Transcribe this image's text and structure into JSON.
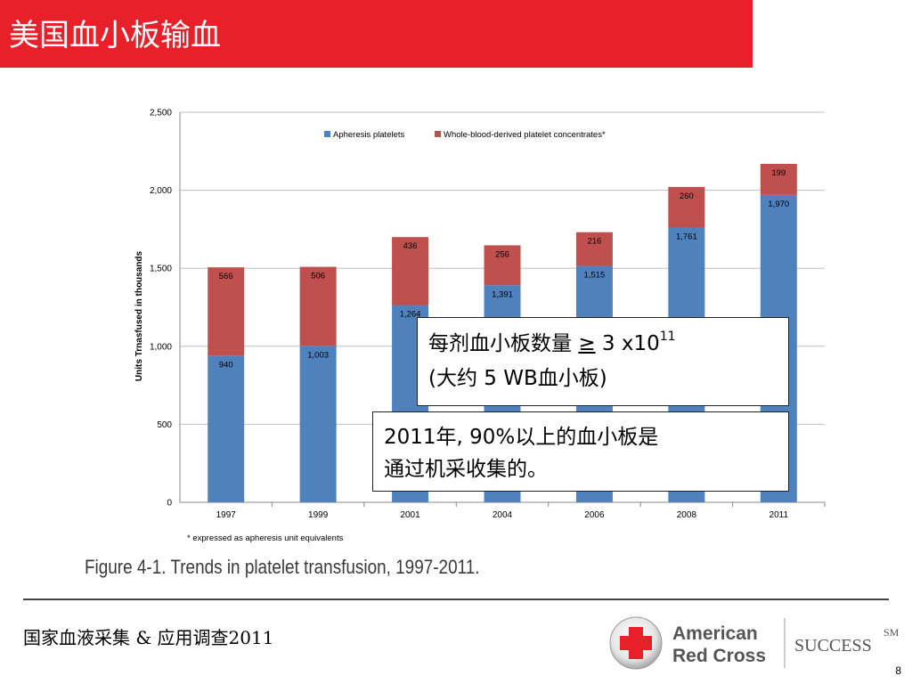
{
  "slide": {
    "title": "美国血小板输血",
    "footer_text": "国家血液采集 & 应用调查2011",
    "page_number": "8",
    "figure_caption": "Figure 4-1. Trends in platelet transfusion, 1997-2011."
  },
  "callouts": {
    "box1_line1": "每剂血小板数量 ",
    "box1_ge": "≥",
    "box1_num": " 3 x10",
    "box1_exp": "11",
    "box1_line2": "(大约 5 WB血小板)",
    "box2_line1": "2011年, 90%以上的血小板是",
    "box2_line2": "通过机采收集的。"
  },
  "logo": {
    "line1": "American",
    "line2": "Red Cross",
    "tagline": "SUCCESS",
    "superscript": "SM"
  },
  "colors": {
    "title_bar": "#e8202a",
    "series_apheresis": "#4f81bd",
    "series_whole_blood": "#c0504d"
  },
  "chart_data": {
    "type": "bar",
    "stacked": true,
    "categories": [
      "1997",
      "1999",
      "2001",
      "2004",
      "2006",
      "2008",
      "2011"
    ],
    "series": [
      {
        "name": "Apheresis platelets",
        "values": [
          940,
          1003,
          1264,
          1391,
          1515,
          1761,
          1970
        ],
        "labels": [
          "940",
          "1,003",
          "1,264",
          "1,391",
          "1,515",
          "1,761",
          "1,970"
        ]
      },
      {
        "name": "Whole-blood-derived platelet concentrates*",
        "values": [
          566,
          506,
          436,
          256,
          216,
          260,
          199
        ],
        "labels": [
          "566",
          "506",
          "436",
          "256",
          "216",
          "260",
          "199"
        ]
      }
    ],
    "ylabel": "Units Trnasfused in thousands",
    "xlabel": "",
    "ylim": [
      0,
      2500
    ],
    "yticks": [
      0,
      500,
      1000,
      1500,
      2000,
      2500
    ],
    "ytick_labels": [
      "0",
      "500",
      "1,000",
      "1,500",
      "2,000",
      "2,500"
    ],
    "grid": true,
    "legend_position": "top",
    "footnote": "* expressed as apheresis unit equivalents"
  }
}
